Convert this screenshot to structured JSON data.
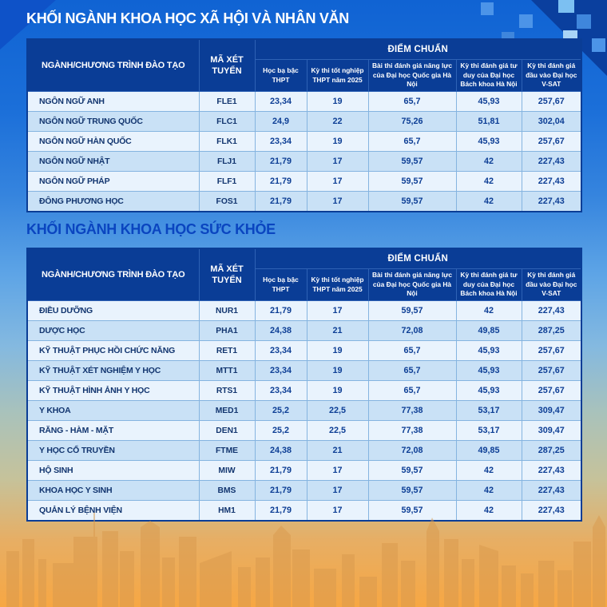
{
  "sections": [
    {
      "title": "KHỐI NGÀNH KHOA HỌC XÃ HỘI VÀ NHÂN VĂN",
      "table": {
        "col1_header": "NGÀNH/CHƯƠNG TRÌNH ĐÀO TẠO",
        "col2_header": "MÃ XÉT TUYỂN",
        "group_header": "ĐIỂM CHUẨN",
        "score_headers": [
          "Học bạ bậc THPT",
          "Kỳ thi tốt nghiệp THPT năm 2025",
          "Bài thi đánh giá năng lực của Đại học Quốc gia Hà Nội",
          "Kỳ thi đánh giá tư duy của Đại học Bách khoa Hà Nội",
          "Kỳ thi đánh giá đầu vào Đại học V-SAT"
        ],
        "rows": [
          {
            "major": "NGÔN NGỮ ANH",
            "code": "FLE1",
            "scores": [
              "23,34",
              "19",
              "65,7",
              "45,93",
              "257,67"
            ]
          },
          {
            "major": "NGÔN NGỮ TRUNG QUỐC",
            "code": "FLC1",
            "scores": [
              "24,9",
              "22",
              "75,26",
              "51,81",
              "302,04"
            ]
          },
          {
            "major": "NGÔN NGỮ HÀN QUỐC",
            "code": "FLK1",
            "scores": [
              "23,34",
              "19",
              "65,7",
              "45,93",
              "257,67"
            ]
          },
          {
            "major": "NGÔN NGỮ NHẬT",
            "code": "FLJ1",
            "scores": [
              "21,79",
              "17",
              "59,57",
              "42",
              "227,43"
            ]
          },
          {
            "major": "NGÔN NGỮ PHÁP",
            "code": "FLF1",
            "scores": [
              "21,79",
              "17",
              "59,57",
              "42",
              "227,43"
            ]
          },
          {
            "major": "ĐÔNG PHƯƠNG HỌC",
            "code": "FOS1",
            "scores": [
              "21,79",
              "17",
              "59,57",
              "42",
              "227,43"
            ]
          }
        ]
      }
    },
    {
      "title": "KHỐI NGÀNH KHOA HỌC SỨC KHỎE",
      "table": {
        "col1_header": "NGÀNH/CHƯƠNG TRÌNH ĐÀO TẠO",
        "col2_header": "MÃ XÉT TUYỂN",
        "group_header": "ĐIỂM CHUẨN",
        "score_headers": [
          "Học bạ bậc THPT",
          "Kỳ thi tốt nghiệp THPT năm 2025",
          "Bài thi đánh giá năng lực của Đại học Quốc gia Hà Nội",
          "Kỳ thi đánh giá tư duy của Đại học Bách khoa Hà Nội",
          "Kỳ thi đánh giá đầu vào Đại học V-SAT"
        ],
        "rows": [
          {
            "major": "ĐIỀU DƯỠNG",
            "code": "NUR1",
            "scores": [
              "21,79",
              "17",
              "59,57",
              "42",
              "227,43"
            ]
          },
          {
            "major": "DƯỢC HỌC",
            "code": "PHA1",
            "scores": [
              "24,38",
              "21",
              "72,08",
              "49,85",
              "287,25"
            ]
          },
          {
            "major": "KỸ THUẬT PHỤC HỒI CHỨC NĂNG",
            "code": "RET1",
            "scores": [
              "23,34",
              "19",
              "65,7",
              "45,93",
              "257,67"
            ]
          },
          {
            "major": "KỸ THUẬT XÉT NGHIỆM Y HỌC",
            "code": "MTT1",
            "scores": [
              "23,34",
              "19",
              "65,7",
              "45,93",
              "257,67"
            ]
          },
          {
            "major": "KỸ THUẬT HÌNH ẢNH Y HỌC",
            "code": "RTS1",
            "scores": [
              "23,34",
              "19",
              "65,7",
              "45,93",
              "257,67"
            ]
          },
          {
            "major": "Y KHOA",
            "code": "MED1",
            "scores": [
              "25,2",
              "22,5",
              "77,38",
              "53,17",
              "309,47"
            ]
          },
          {
            "major": "RĂNG - HÀM - MẶT",
            "code": "DEN1",
            "scores": [
              "25,2",
              "22,5",
              "77,38",
              "53,17",
              "309,47"
            ]
          },
          {
            "major": "Y HỌC CỔ TRUYỀN",
            "code": "FTME",
            "scores": [
              "24,38",
              "21",
              "72,08",
              "49,85",
              "287,25"
            ]
          },
          {
            "major": "HỘ SINH",
            "code": "MIW",
            "scores": [
              "21,79",
              "17",
              "59,57",
              "42",
              "227,43"
            ]
          },
          {
            "major": "KHOA HỌC Y SINH",
            "code": "BMS",
            "scores": [
              "21,79",
              "17",
              "59,57",
              "42",
              "227,43"
            ]
          },
          {
            "major": "QUẢN LÝ BỆNH VIỆN",
            "code": "HM1",
            "scores": [
              "21,79",
              "17",
              "59,57",
              "42",
              "227,43"
            ]
          }
        ]
      }
    }
  ],
  "colors": {
    "header_navy": "#0a3d96",
    "row_light": "#e9f3fd",
    "row_shaded": "#c9e1f6",
    "value_text": "#0d3e95",
    "title1_text": "#ffffff",
    "title2_text": "#0a45c0",
    "bg_top_blue": "#1063d3",
    "bg_bottom_orange": "#f7a743",
    "skyline_orange": "#d99a4e"
  }
}
